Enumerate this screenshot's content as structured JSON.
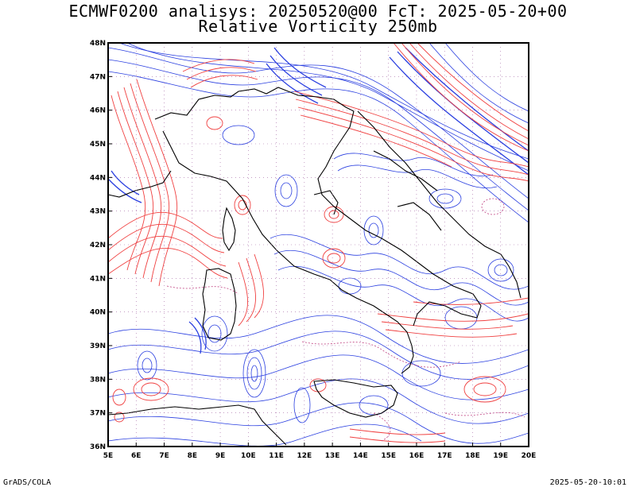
{
  "title_line1": "ECMWF0200 analisys: 20250520@00 FcT: 2025-05-20+00",
  "title_line2": "Relative Vorticity 250mb",
  "footer_left": "GrADS/COLA",
  "footer_right": "2025-05-20-10:01",
  "map": {
    "lon_range": [
      5,
      20
    ],
    "lat_range": [
      36,
      48
    ],
    "lon_ticks": [
      "5E",
      "6E",
      "7E",
      "8E",
      "9E",
      "10E",
      "11E",
      "12E",
      "13E",
      "14E",
      "15E",
      "16E",
      "17E",
      "18E",
      "19E",
      "20E"
    ],
    "lat_ticks": [
      "36N",
      "37N",
      "38N",
      "39N",
      "40N",
      "41N",
      "42N",
      "43N",
      "44N",
      "45N",
      "46N",
      "47N",
      "48N"
    ],
    "colors": {
      "positive_contours": "#2a3fe0",
      "negative_contours": "#f04040",
      "zero_dotted": "#c04080",
      "coastlines": "#000000",
      "grid_dots": "#a060a0"
    }
  }
}
